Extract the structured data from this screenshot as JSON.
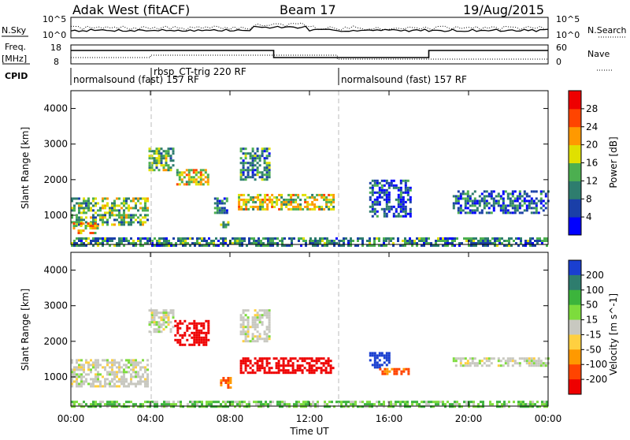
{
  "header": {
    "radar": "Adak West (fitACF)",
    "beam": "Beam 17",
    "date": "19/Aug/2015"
  },
  "strips": {
    "nsky_label": "N.Sky",
    "nsky_ticks": [
      "10^5",
      "10^0"
    ],
    "nsearch_label": "N.Search",
    "nsearch_ticks": [
      "10^5",
      "10^0"
    ],
    "freq_label": "Freq.",
    "freq_unit": "[MHz]",
    "freq_ticks": [
      "18",
      "8"
    ],
    "nave_label": "Nave",
    "nave_ticks": [
      "60",
      "0"
    ],
    "cpid_label": "CPID"
  },
  "cpid_segments": [
    {
      "label": "normalsound (fast) 157 RF",
      "start_h": 0.0
    },
    {
      "label": "rbsp_CT-trig 220 RF",
      "start_h": 4.0
    },
    {
      "label": "normalsound (fast) 157 RF",
      "start_h": 13.4
    }
  ],
  "chart_data": [
    {
      "type": "heatmap",
      "panel": "power",
      "ylabel": "Slant Range [km]",
      "ylim": [
        180,
        4500
      ],
      "yticks": [
        1000,
        2000,
        3000,
        4000
      ],
      "xlim_h": [
        0,
        24
      ],
      "colorbar": {
        "label": "Power [dB]",
        "ticks": [
          4,
          8,
          12,
          16,
          20,
          24,
          28
        ],
        "range": [
          0,
          32
        ],
        "colors": [
          "#0000ff",
          "#1a3fa8",
          "#2e7d6e",
          "#4caf50",
          "#e0e000",
          "#ff9900",
          "#ff4400",
          "#ee0000"
        ]
      },
      "regions": [
        {
          "t0": 0.0,
          "t1": 3.9,
          "r0": 750,
          "r1": 1500,
          "value": 14
        },
        {
          "t0": 0.1,
          "t1": 1.3,
          "r0": 500,
          "r1": 800,
          "value": 20
        },
        {
          "t0": 3.9,
          "t1": 5.2,
          "r0": 2300,
          "r1": 2900,
          "value": 14
        },
        {
          "t0": 5.3,
          "t1": 6.9,
          "r0": 1900,
          "r1": 2300,
          "value": 18
        },
        {
          "t0": 7.2,
          "t1": 7.8,
          "r0": 1100,
          "r1": 1500,
          "value": 10
        },
        {
          "t0": 7.5,
          "t1": 7.9,
          "r0": 700,
          "r1": 900,
          "value": 14
        },
        {
          "t0": 8.4,
          "t1": 13.2,
          "r0": 1150,
          "r1": 1600,
          "value": 18
        },
        {
          "t0": 8.5,
          "t1": 10.0,
          "r0": 2000,
          "r1": 2900,
          "value": 10
        },
        {
          "t0": 15.0,
          "t1": 17.1,
          "r0": 1000,
          "r1": 2000,
          "value": 6
        },
        {
          "t0": 19.2,
          "t1": 24.0,
          "r0": 1100,
          "r1": 1700,
          "value": 8
        },
        {
          "t0": 0.0,
          "t1": 24.0,
          "r0": 180,
          "r1": 380,
          "value": 10
        }
      ]
    },
    {
      "type": "heatmap",
      "panel": "velocity",
      "ylabel": "Slant Range [km]",
      "ylim": [
        180,
        4500
      ],
      "yticks": [
        1000,
        2000,
        3000,
        4000
      ],
      "xlim_h": [
        0,
        24
      ],
      "colorbar": {
        "label": "Velocity [m s^-1]",
        "ticks": [
          "200",
          "100",
          "50",
          "15",
          "-15",
          "-50",
          "-100",
          "-200"
        ],
        "colors": [
          "#1a3fd0",
          "#2e7d6e",
          "#3cb43c",
          "#7ddc3c",
          "#c8c8c0",
          "#ffd040",
          "#ff9900",
          "#ff4400",
          "#ee0000"
        ]
      },
      "regions": [
        {
          "t0": 0.0,
          "t1": 3.9,
          "r0": 750,
          "r1": 1500,
          "value": 0
        },
        {
          "t0": 3.9,
          "t1": 5.2,
          "r0": 2300,
          "r1": 2900,
          "value": 0
        },
        {
          "t0": 5.2,
          "t1": 6.9,
          "r0": 1900,
          "r1": 2600,
          "value": -250
        },
        {
          "t0": 7.5,
          "t1": 8.0,
          "r0": 700,
          "r1": 1000,
          "value": -80
        },
        {
          "t0": 8.5,
          "t1": 13.2,
          "r0": 1150,
          "r1": 1550,
          "value": -250
        },
        {
          "t0": 8.5,
          "t1": 10.0,
          "r0": 2000,
          "r1": 2900,
          "value": 0
        },
        {
          "t0": 15.0,
          "t1": 16.0,
          "r0": 1300,
          "r1": 1700,
          "value": 200
        },
        {
          "t0": 15.5,
          "t1": 17.0,
          "r0": 1100,
          "r1": 1250,
          "value": -80
        },
        {
          "t0": 19.2,
          "t1": 24.0,
          "r0": 1300,
          "r1": 1550,
          "value": 0
        },
        {
          "t0": 0.0,
          "t1": 24.0,
          "r0": 180,
          "r1": 330,
          "value": 30
        }
      ]
    }
  ],
  "xaxis": {
    "ticks": [
      "00:00",
      "04:00",
      "08:00",
      "12:00",
      "16:00",
      "20:00",
      "00:00"
    ],
    "label": "Time UT"
  }
}
